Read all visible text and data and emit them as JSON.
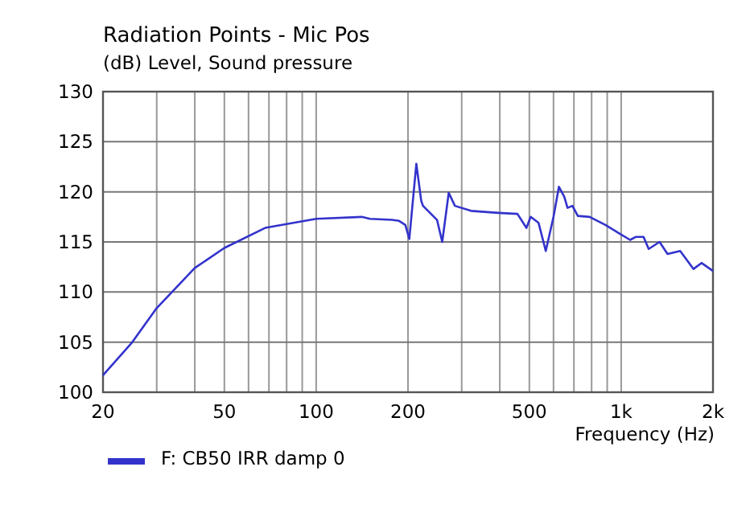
{
  "chart_data": {
    "type": "line",
    "title": "Radiation Points - Mic Pos",
    "ylabel": "(dB)  Level, Sound pressure",
    "xlabel": "Frequency  (Hz)",
    "log": "x",
    "xlim": [
      20,
      2000
    ],
    "xticks": [
      20,
      {
        "value": 30,
        "label": null
      },
      {
        "value": 40,
        "label": null
      },
      50,
      {
        "value": 60,
        "label": null
      },
      {
        "value": 70,
        "label": null
      },
      {
        "value": 80,
        "label": null
      },
      {
        "value": 90,
        "label": null
      },
      100,
      200,
      {
        "value": 300,
        "label": null
      },
      {
        "value": 400,
        "label": null
      },
      500,
      {
        "value": 600,
        "label": null
      },
      {
        "value": 700,
        "label": null
      },
      {
        "value": 800,
        "label": null
      },
      {
        "value": 900,
        "label": null
      },
      {
        "value": 1000,
        "label": "1k"
      },
      {
        "value": 2000,
        "label": "2k"
      }
    ],
    "ylim": [
      100,
      130
    ],
    "yticks": [
      100,
      105,
      110,
      115,
      120,
      125,
      130
    ],
    "grid": true,
    "legend": "bottom left",
    "marker": "none",
    "line_style": "solid",
    "series": [
      {
        "name": "F: CB50 IRR damp 0",
        "color": "#3333cc",
        "x": [
          20,
          24.8,
          30,
          40,
          50,
          68,
          100,
          141,
          150,
          177,
          187,
          196,
          202,
          213,
          221,
          224,
          249,
          259,
          272,
          285,
          322,
          396,
          457,
          489,
          505,
          536,
          566,
          600,
          625,
          651,
          667,
          692,
          721,
          788,
          888,
          980,
          1070,
          1115,
          1184,
          1231,
          1336,
          1419,
          1561,
          1727,
          1834,
          2000
        ],
        "values": [
          101.7,
          104.9,
          108.4,
          112.4,
          114.4,
          116.4,
          117.3,
          117.5,
          117.3,
          117.2,
          117.1,
          116.7,
          115.3,
          122.8,
          119.1,
          118.6,
          117.2,
          115.0,
          119.9,
          118.6,
          118.1,
          117.9,
          117.8,
          116.4,
          117.5,
          116.9,
          114.1,
          117.5,
          120.5,
          119.5,
          118.4,
          118.6,
          117.6,
          117.5,
          116.7,
          115.9,
          115.2,
          115.5,
          115.5,
          114.3,
          115.0,
          113.8,
          114.1,
          112.3,
          112.9,
          112.1
        ]
      }
    ]
  }
}
